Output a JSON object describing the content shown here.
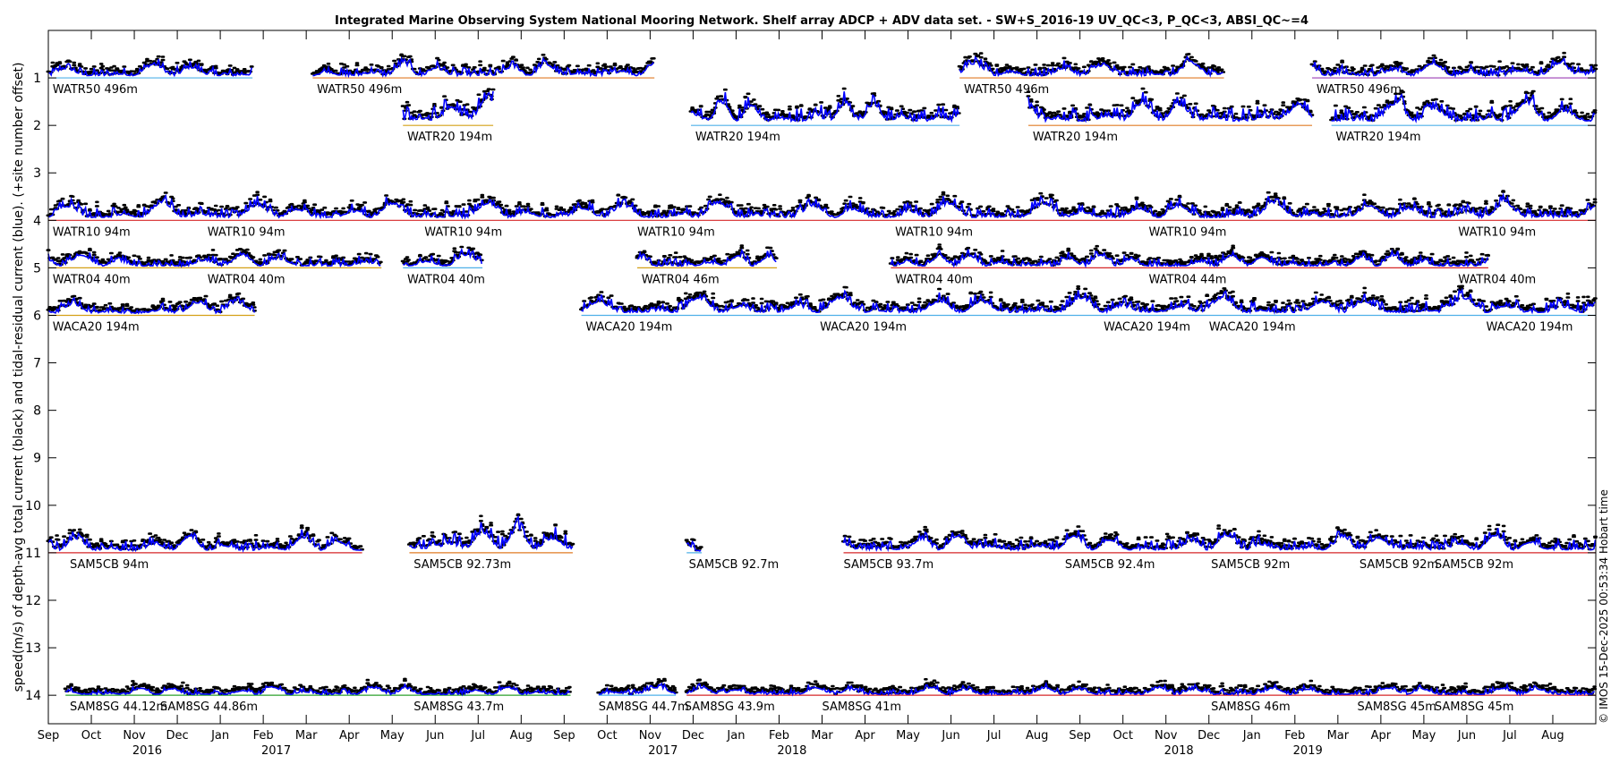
{
  "chart_data": {
    "type": "line",
    "title": "Integrated Marine Observing System National Mooring Network. Shelf array ADCP + ADV data set. - SW+S_2016-19 UV_QC<3, P_QC<3, ABSI_QC~=4",
    "ylabel": "speed(m/s) of depth-avg total current (black) and tidal-residual current (blue). (+site number offset)",
    "credit": "© IMOS 15-Dec-2025 00:53:34 Hobart time",
    "ylim": [
      0,
      14.6
    ],
    "y_reversed": true,
    "yticks": [
      1,
      2,
      3,
      4,
      5,
      6,
      7,
      8,
      9,
      10,
      11,
      12,
      13,
      14
    ],
    "xlim_months": [
      0,
      36
    ],
    "xtick_months": [
      "Sep",
      "Oct",
      "Nov",
      "Dec",
      "Jan",
      "Feb",
      "Mar",
      "Apr",
      "May",
      "Jun",
      "Jul",
      "Aug",
      "Sep",
      "Oct",
      "Nov",
      "Dec",
      "Jan",
      "Feb",
      "Mar",
      "Apr",
      "May",
      "Jun",
      "Jul",
      "Aug",
      "Sep",
      "Oct",
      "Nov",
      "Dec",
      "Jan",
      "Feb",
      "Mar",
      "Apr",
      "May",
      "Jun",
      "Jul",
      "Aug"
    ],
    "year_labels": [
      {
        "label": "2016",
        "month_index": 2.3
      },
      {
        "label": "2017",
        "month_index": 5.3
      },
      {
        "label": "2017",
        "month_index": 14.3
      },
      {
        "label": "2018",
        "month_index": 17.3
      },
      {
        "label": "2018",
        "month_index": 26.3
      },
      {
        "label": "2019",
        "month_index": 29.3
      }
    ],
    "series_colors": {
      "total": "#000000",
      "residual": "#0000ff"
    },
    "deployments": [
      {
        "site": 1,
        "start": 0.0,
        "end": 4.75,
        "label": "WATR50 496m",
        "baseline": "#4fb0e8",
        "amp": 0.5
      },
      {
        "site": 1,
        "start": 6.15,
        "end": 14.1,
        "label": "WATR50 496m",
        "baseline": "#e07b24",
        "amp": 0.5
      },
      {
        "site": 1,
        "start": 21.2,
        "end": 27.35,
        "label": "WATR50 496m",
        "baseline": "#e07b24",
        "amp": 0.5
      },
      {
        "site": 1,
        "start": 29.4,
        "end": 36.0,
        "label": "WATR50 496m",
        "baseline": "#9b3fb5",
        "amp": 0.5
      },
      {
        "site": 2,
        "start": 8.25,
        "end": 10.35,
        "label": "WATR20 194m",
        "baseline": "#d4a017",
        "amp": 0.9
      },
      {
        "site": 2,
        "start": 14.95,
        "end": 21.2,
        "label": "WATR20 194m",
        "baseline": "#4fb0e8",
        "amp": 0.8
      },
      {
        "site": 2,
        "start": 22.8,
        "end": 29.4,
        "label": "WATR20 194m",
        "baseline": "#e07b24",
        "amp": 0.8
      },
      {
        "site": 2,
        "start": 29.85,
        "end": 36.0,
        "label": "WATR20 194m",
        "baseline": "#4fb0e8",
        "amp": 0.8
      },
      {
        "site": 4,
        "start": 0.0,
        "end": 36.0,
        "label": "WATR10 94m",
        "baseline": "#d62728",
        "amp": 0.6
      },
      {
        "site": 5,
        "start": 0.0,
        "end": 7.75,
        "label": "WATR04 40m",
        "baseline": "#d4a017",
        "amp": 0.45
      },
      {
        "site": 5,
        "start": 8.25,
        "end": 10.1,
        "label": "WATR04 40m",
        "baseline": "#4fb0e8",
        "amp": 0.45
      },
      {
        "site": 5,
        "start": 13.7,
        "end": 16.95,
        "label": "WATR04 46m",
        "baseline": "#d4a017",
        "amp": 0.45
      },
      {
        "site": 5,
        "start": 19.6,
        "end": 33.5,
        "label": "WATR04 44m",
        "baseline": "#d62728",
        "amp": 0.45
      },
      {
        "site": 6,
        "start": 0.0,
        "end": 4.8,
        "label": "WACA20 194m",
        "baseline": "#d4a017",
        "amp": 0.5
      },
      {
        "site": 6,
        "start": 12.4,
        "end": 36.0,
        "label": "WACA20 194m",
        "baseline": "#4fb0e8",
        "amp": 0.6
      },
      {
        "site": 11,
        "start": 0.0,
        "end": 7.3,
        "label": "SAM5CB 94m",
        "baseline": "#d62728",
        "amp": 0.55
      },
      {
        "site": 11,
        "start": 8.4,
        "end": 12.2,
        "label": "SAM5CB 92.73m",
        "baseline": "#e07b24",
        "amp": 0.8
      },
      {
        "site": 11,
        "start": 14.85,
        "end": 15.2,
        "label": "SAM5CB 92.7m",
        "baseline": "#4fb0e8",
        "amp": 0.4
      },
      {
        "site": 11,
        "start": 18.5,
        "end": 36.0,
        "label": "SAM5CB 93.7m",
        "baseline": "#d62728",
        "amp": 0.6
      },
      {
        "site": 14,
        "start": 0.4,
        "end": 12.15,
        "label": "SAM8SG 44.12m",
        "baseline": "#2ca02c",
        "amp": 0.3
      },
      {
        "site": 14,
        "start": 12.8,
        "end": 14.6,
        "label": "SAM8SG 44.7m",
        "baseline": "#4fb0e8",
        "amp": 0.3
      },
      {
        "site": 14,
        "start": 14.85,
        "end": 36.0,
        "label": "SAM8SG 43.9m",
        "baseline": "#d62728",
        "amp": 0.3
      }
    ],
    "site_labels": [
      {
        "site": 1,
        "month": 0.1,
        "text": "WATR50 496m"
      },
      {
        "site": 1,
        "month": 6.25,
        "text": "WATR50 496m"
      },
      {
        "site": 1,
        "month": 21.3,
        "text": "WATR50 496m"
      },
      {
        "site": 1,
        "month": 29.5,
        "text": "WATR50 496m"
      },
      {
        "site": 2,
        "month": 8.35,
        "text": "WATR20 194m"
      },
      {
        "site": 2,
        "month": 15.05,
        "text": "WATR20 194m"
      },
      {
        "site": 2,
        "month": 22.9,
        "text": "WATR20 194m"
      },
      {
        "site": 2,
        "month": 29.95,
        "text": "WATR20 194m"
      },
      {
        "site": 4,
        "month": 0.1,
        "text": "WATR10 94m"
      },
      {
        "site": 4,
        "month": 3.7,
        "text": "WATR10 94m"
      },
      {
        "site": 4,
        "month": 8.75,
        "text": "WATR10 94m"
      },
      {
        "site": 4,
        "month": 13.7,
        "text": "WATR10 94m"
      },
      {
        "site": 4,
        "month": 19.7,
        "text": "WATR10 94m"
      },
      {
        "site": 4,
        "month": 25.6,
        "text": "WATR10 94m"
      },
      {
        "site": 4,
        "month": 32.8,
        "text": "WATR10 94m"
      },
      {
        "site": 5,
        "month": 0.1,
        "text": "WATR04 40m"
      },
      {
        "site": 5,
        "month": 3.7,
        "text": "WATR04 40m"
      },
      {
        "site": 5,
        "month": 8.35,
        "text": "WATR04 40m"
      },
      {
        "site": 5,
        "month": 13.8,
        "text": "WATR04 46m"
      },
      {
        "site": 5,
        "month": 19.7,
        "text": "WATR04 40m"
      },
      {
        "site": 5,
        "month": 25.6,
        "text": "WATR04 44m"
      },
      {
        "site": 5,
        "month": 32.8,
        "text": "WATR04 40m"
      },
      {
        "site": 6,
        "month": 0.1,
        "text": "WACA20 194m"
      },
      {
        "site": 6,
        "month": 12.5,
        "text": "WACA20 194m"
      },
      {
        "site": 6,
        "month": 17.95,
        "text": "WACA20 194m"
      },
      {
        "site": 6,
        "month": 24.55,
        "text": "WACA20 194m"
      },
      {
        "site": 6,
        "month": 27.0,
        "text": "WACA20 194m"
      },
      {
        "site": 6,
        "month": 33.45,
        "text": "WACA20 194m"
      },
      {
        "site": 11,
        "month": 0.5,
        "text": "SAM5CB 94m"
      },
      {
        "site": 11,
        "month": 8.5,
        "text": "SAM5CB 92.73m"
      },
      {
        "site": 11,
        "month": 14.9,
        "text": "SAM5CB 92.7m"
      },
      {
        "site": 11,
        "month": 18.5,
        "text": "SAM5CB 93.7m"
      },
      {
        "site": 11,
        "month": 23.65,
        "text": "SAM5CB 92.4m"
      },
      {
        "site": 11,
        "month": 27.05,
        "text": "SAM5CB 92m"
      },
      {
        "site": 11,
        "month": 30.5,
        "text": "SAM5CB 92m"
      },
      {
        "site": 11,
        "month": 32.25,
        "text": "SAM5CB 92m"
      },
      {
        "site": 14,
        "month": 0.5,
        "text": "SAM8SG 44.12m"
      },
      {
        "site": 14,
        "month": 2.6,
        "text": "SAM8SG 44.86m"
      },
      {
        "site": 14,
        "month": 8.5,
        "text": "SAM8SG 43.7m"
      },
      {
        "site": 14,
        "month": 12.8,
        "text": "SAM8SG 44.7m"
      },
      {
        "site": 14,
        "month": 14.8,
        "text": "SAM8SG 43.9m"
      },
      {
        "site": 14,
        "month": 18.0,
        "text": "SAM8SG 41m"
      },
      {
        "site": 14,
        "month": 27.05,
        "text": "SAM8SG 46m"
      },
      {
        "site": 14,
        "month": 30.45,
        "text": "SAM8SG 45m"
      },
      {
        "site": 14,
        "month": 32.25,
        "text": "SAM8SG 45m"
      }
    ]
  }
}
